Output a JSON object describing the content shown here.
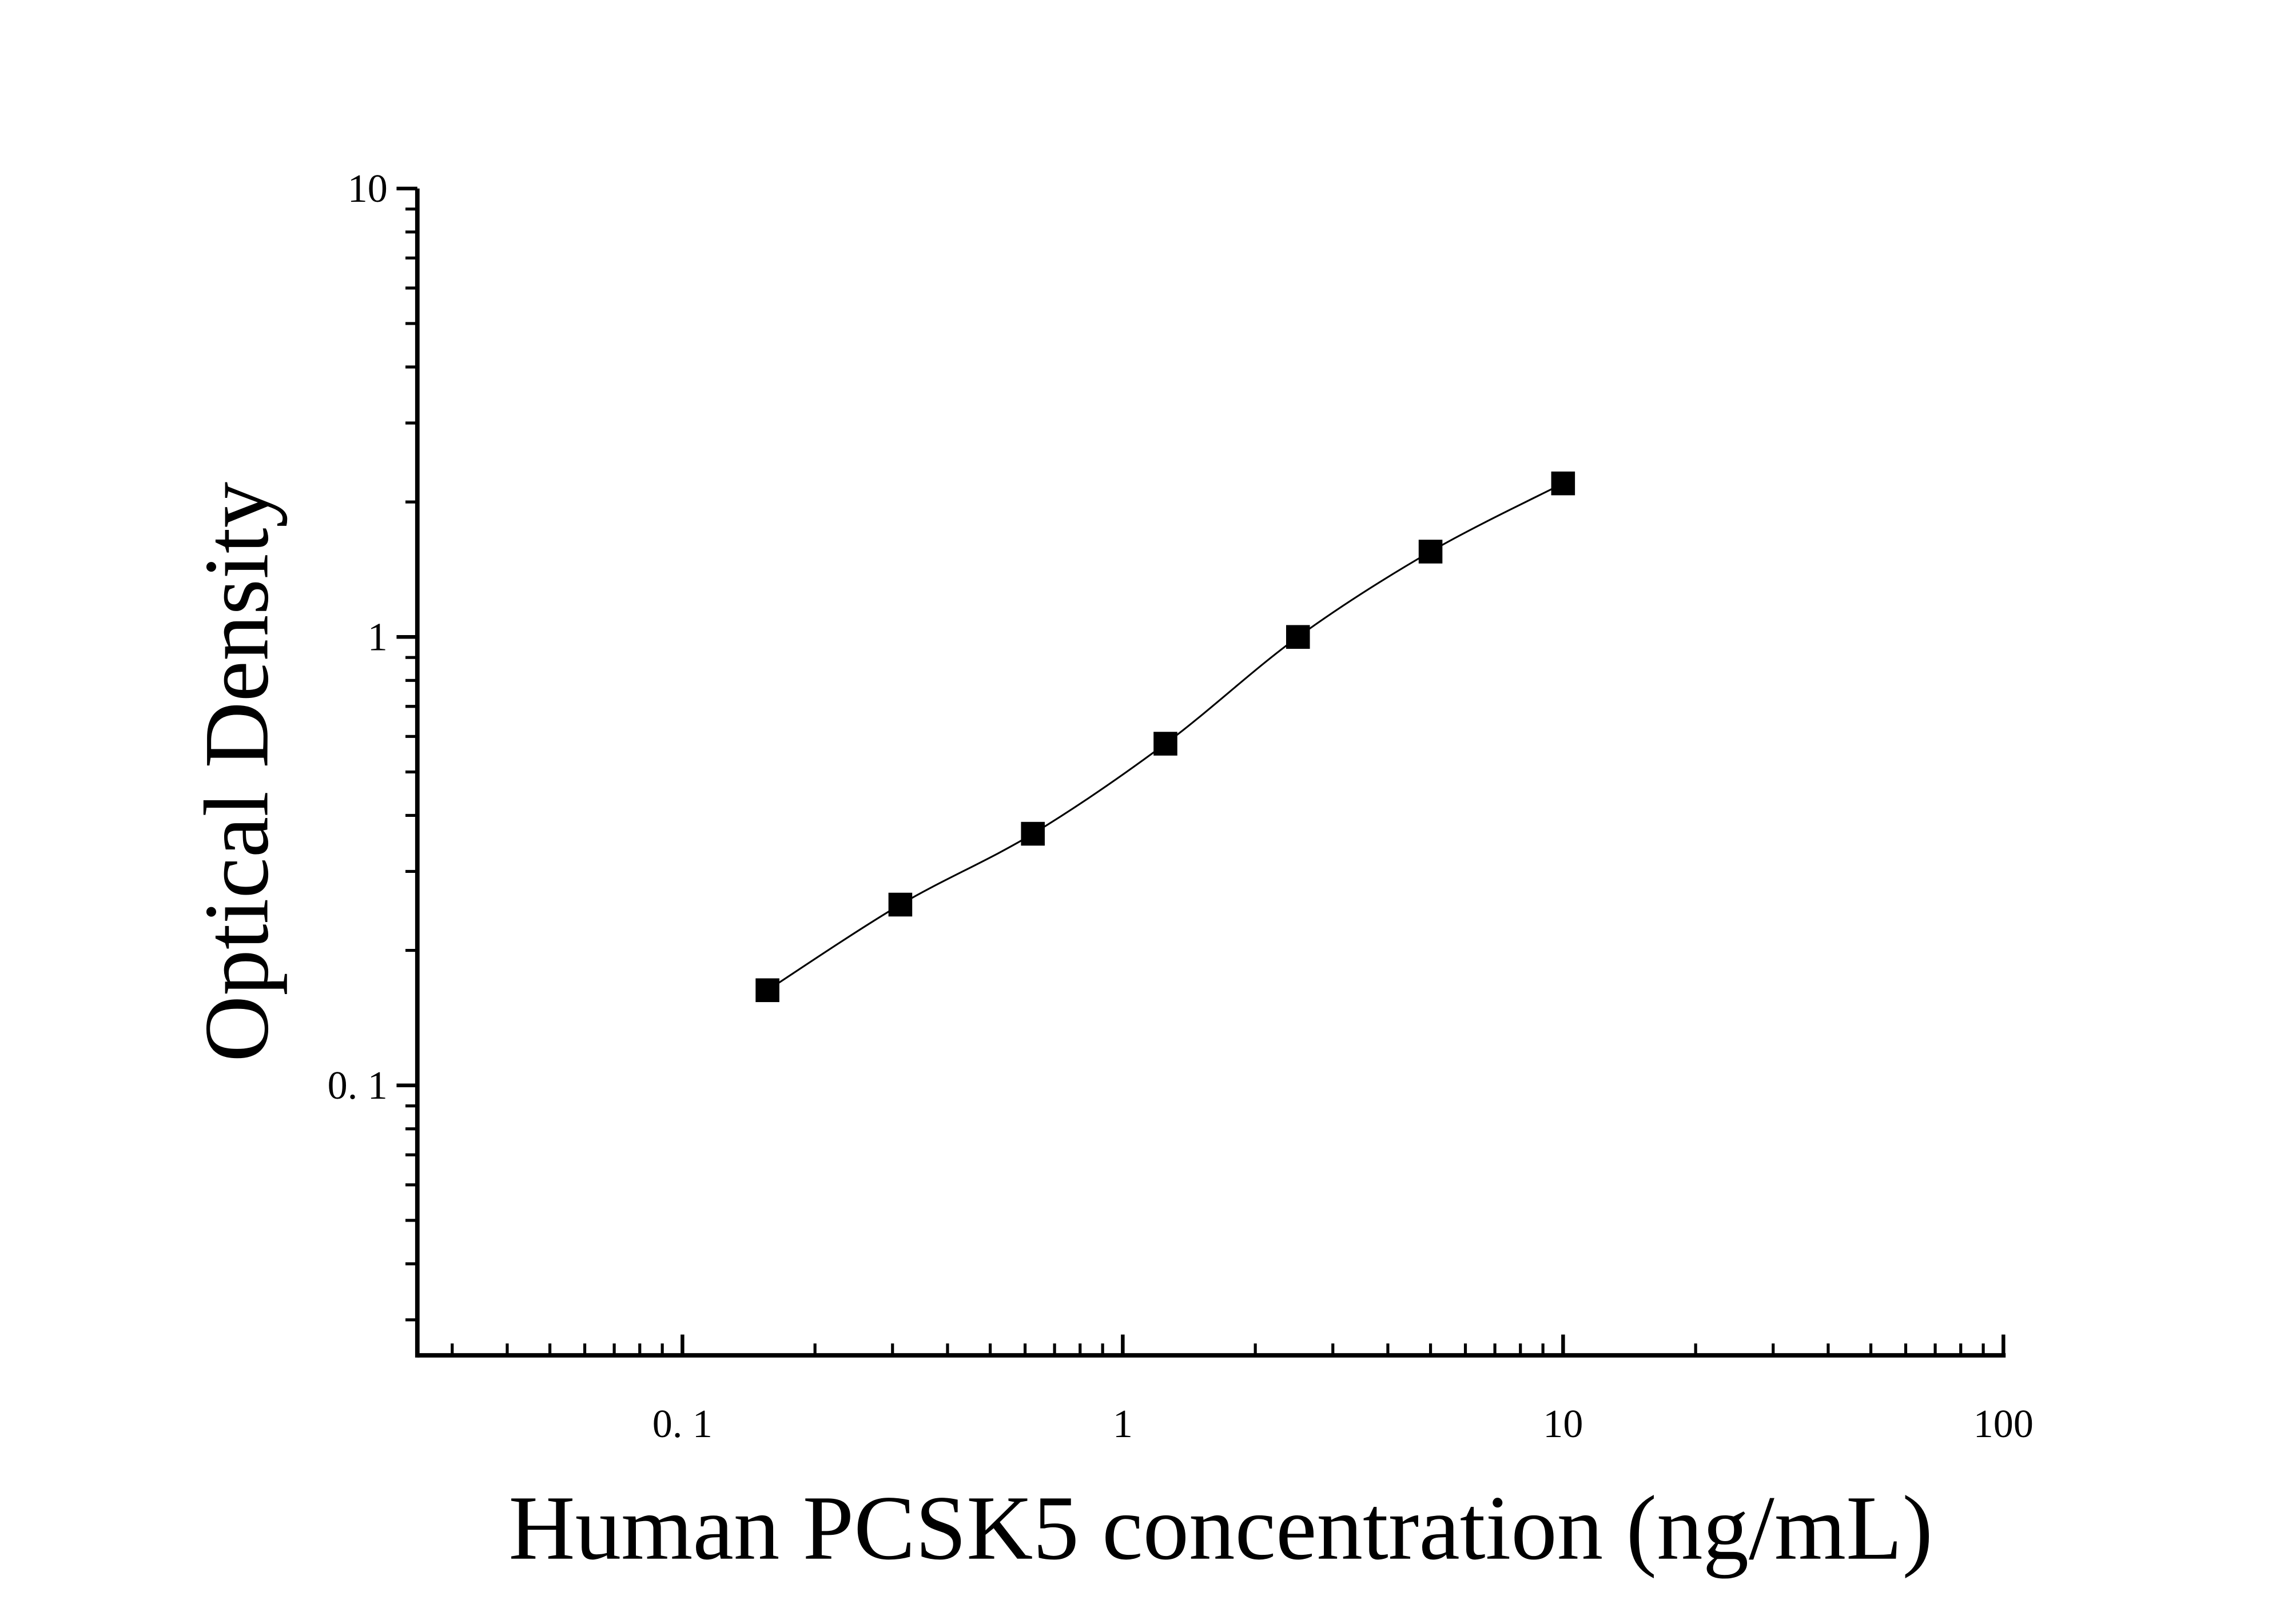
{
  "chart_data": {
    "type": "scatter",
    "x_label": "Human PCSK5 concentration (ng/mL)",
    "y_label": "Optical Density",
    "log_x": true,
    "log_y": true,
    "xlim": [
      0.025,
      100
    ],
    "ylim": [
      0.025,
      10
    ],
    "xticks": [
      {
        "value": 0.1,
        "label": "0. 1"
      },
      1,
      10,
      100
    ],
    "yticks": [
      {
        "value": 0.1,
        "label": "0. 1"
      },
      1,
      10
    ],
    "xminorticks": [
      0.03,
      0.04,
      0.05,
      0.06,
      0.07,
      0.08,
      0.09,
      0.2,
      0.3,
      0.4,
      0.5,
      0.6,
      0.7,
      0.8,
      0.9,
      2,
      3,
      4,
      5,
      6,
      7,
      8,
      9,
      20,
      30,
      40,
      50,
      60,
      70,
      80,
      90
    ],
    "yminorticks": [
      0.03,
      0.04,
      0.05,
      0.06,
      0.07,
      0.08,
      0.09,
      0.2,
      0.3,
      0.4,
      0.5,
      0.6,
      0.7,
      0.8,
      0.9,
      2,
      3,
      4,
      5,
      6,
      7,
      8,
      9
    ],
    "series": [
      {
        "color": "#000000",
        "marker": "square",
        "line": "smooth",
        "x": [
          0.156,
          0.3125,
          0.625,
          1.25,
          2.5,
          5,
          10
        ],
        "values": [
          0.163,
          0.253,
          0.364,
          0.578,
          1.0,
          1.55,
          2.2
        ]
      }
    ]
  }
}
